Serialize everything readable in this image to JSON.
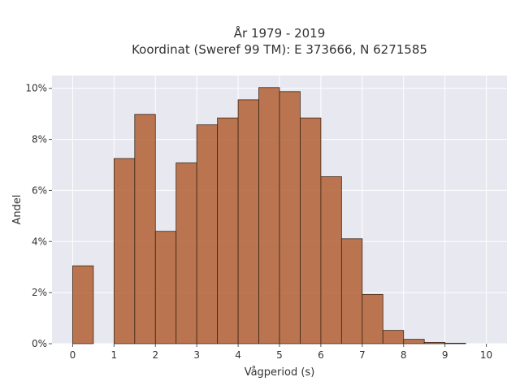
{
  "chart_data": {
    "type": "bar",
    "title": "År 1979 - 2019",
    "subtitle": "Koordinat (Sweref 99 TM): E 373666, N 6271585",
    "xlabel": "Vågperiod (s)",
    "ylabel": "Andel",
    "xlim": [
      -0.5,
      10.5
    ],
    "ylim": [
      0,
      10.5
    ],
    "x_ticks": [
      0,
      1,
      2,
      3,
      4,
      5,
      6,
      7,
      8,
      9,
      10
    ],
    "y_ticks": [
      0,
      2,
      4,
      6,
      8,
      10
    ],
    "y_tick_labels": [
      "0%",
      "2%",
      "4%",
      "6%",
      "8%",
      "10%"
    ],
    "bin_width": 0.5,
    "bins": [
      {
        "start": 0.0,
        "value": 3.05
      },
      {
        "start": 0.5,
        "value": 0.0
      },
      {
        "start": 1.0,
        "value": 7.25
      },
      {
        "start": 1.5,
        "value": 8.98
      },
      {
        "start": 2.0,
        "value": 4.4
      },
      {
        "start": 2.5,
        "value": 7.08
      },
      {
        "start": 3.0,
        "value": 8.57
      },
      {
        "start": 3.5,
        "value": 8.84
      },
      {
        "start": 4.0,
        "value": 9.55
      },
      {
        "start": 4.5,
        "value": 10.03
      },
      {
        "start": 5.0,
        "value": 9.87
      },
      {
        "start": 5.5,
        "value": 8.84
      },
      {
        "start": 6.0,
        "value": 6.54
      },
      {
        "start": 6.5,
        "value": 4.11
      },
      {
        "start": 7.0,
        "value": 1.93
      },
      {
        "start": 7.5,
        "value": 0.52
      },
      {
        "start": 8.0,
        "value": 0.17
      },
      {
        "start": 8.5,
        "value": 0.05
      },
      {
        "start": 9.0,
        "value": 0.02
      }
    ],
    "grid": true,
    "bar_color": "#b5683e",
    "bar_edge_color": "#3d2516",
    "plot_bg": "#e8e8f1"
  }
}
